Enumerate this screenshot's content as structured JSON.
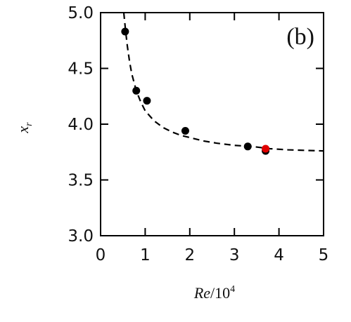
{
  "panel_label": "(b)",
  "chart_data": {
    "type": "scatter",
    "xlim": [
      0,
      5
    ],
    "ylim": [
      3.0,
      5.0
    ],
    "xticks": [
      "0",
      "1",
      "2",
      "3",
      "4",
      "5"
    ],
    "yticks": [
      "3.0",
      "3.5",
      "4.0",
      "4.5",
      "5.0"
    ],
    "xlabel": {
      "main": "Re",
      "suffix": "/10",
      "exponent": "4"
    },
    "ylabel": {
      "main": "x",
      "subscript": "r"
    },
    "grid": false,
    "series": [
      {
        "color": "#000000",
        "x": [
          0.55,
          0.8,
          1.04,
          1.9,
          3.3,
          3.7
        ],
        "y": [
          4.83,
          4.3,
          4.21,
          3.94,
          3.8,
          3.76
        ]
      },
      {
        "color": "#e00000",
        "x": [
          3.7
        ],
        "y": [
          3.78
        ]
      }
    ],
    "fit_curve": {
      "style": "dashed",
      "color": "#000000",
      "x": [
        0.52,
        0.56,
        0.6,
        0.65,
        0.7,
        0.8,
        0.9,
        1.0,
        1.2,
        1.4,
        1.6,
        1.8,
        2.0,
        2.3,
        2.6,
        3.0,
        3.4,
        3.8,
        4.2,
        4.6,
        5.0
      ],
      "y": [
        5.0,
        4.84,
        4.7,
        4.56,
        4.45,
        4.3,
        4.2,
        4.12,
        4.03,
        3.97,
        3.93,
        3.9,
        3.88,
        3.85,
        3.83,
        3.81,
        3.8,
        3.78,
        3.77,
        3.765,
        3.76
      ]
    }
  }
}
